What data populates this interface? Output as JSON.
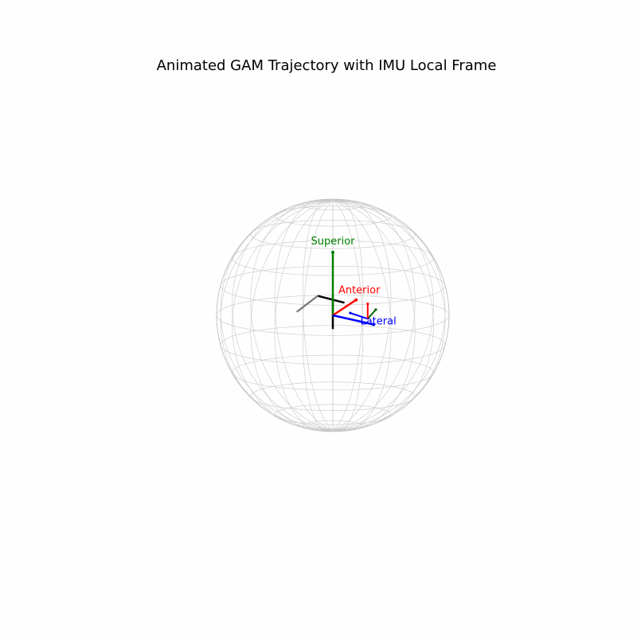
{
  "chart_data": {
    "type": "3d-line",
    "title": "Animated GAM Trajectory with IMU Local Frame",
    "sphere": {
      "radius": 1,
      "wireframe_color": "#c8c8c8",
      "meridians": 24,
      "parallels": 12
    },
    "view": {
      "elevation_deg": 10,
      "azimuth_deg": 0
    },
    "global_axes": [
      {
        "name": "Superior",
        "color": "#008000",
        "vector": [
          0,
          0,
          0.55
        ]
      },
      {
        "name": "Anterior",
        "color": "#ff0000",
        "vector": [
          0.2,
          -0.2,
          0.17
        ]
      },
      {
        "name": "Lateral",
        "color": "#0000ff",
        "vector": [
          0.35,
          0.0,
          -0.08
        ]
      }
    ],
    "global_axes_origin": [
      0,
      0,
      0
    ],
    "imu_origin": [
      0.3,
      0,
      -0.03
    ],
    "imu_local_frame": [
      {
        "axis": "x",
        "color": "#0000ff",
        "vector": [
          -0.15,
          0,
          0.05
        ]
      },
      {
        "axis": "y",
        "color": "#006400",
        "vector": [
          0.07,
          0,
          0.08
        ]
      },
      {
        "axis": "z",
        "color": "#ff0000",
        "vector": [
          0,
          0,
          0.13
        ]
      }
    ],
    "trajectory": {
      "colors": [
        "#000000",
        "#808080"
      ],
      "segments": [
        {
          "from": [
            0,
            0,
            -0.12
          ],
          "to": [
            0,
            0,
            0.15
          ],
          "color": "#000000"
        },
        {
          "from": [
            0.1,
            0,
            0.11
          ],
          "to": [
            -0.13,
            0,
            0.17
          ],
          "color": "#000000"
        },
        {
          "from": [
            -0.13,
            0,
            0.17
          ],
          "to": [
            -0.31,
            0,
            0.03
          ],
          "color": "#808080"
        }
      ]
    }
  }
}
